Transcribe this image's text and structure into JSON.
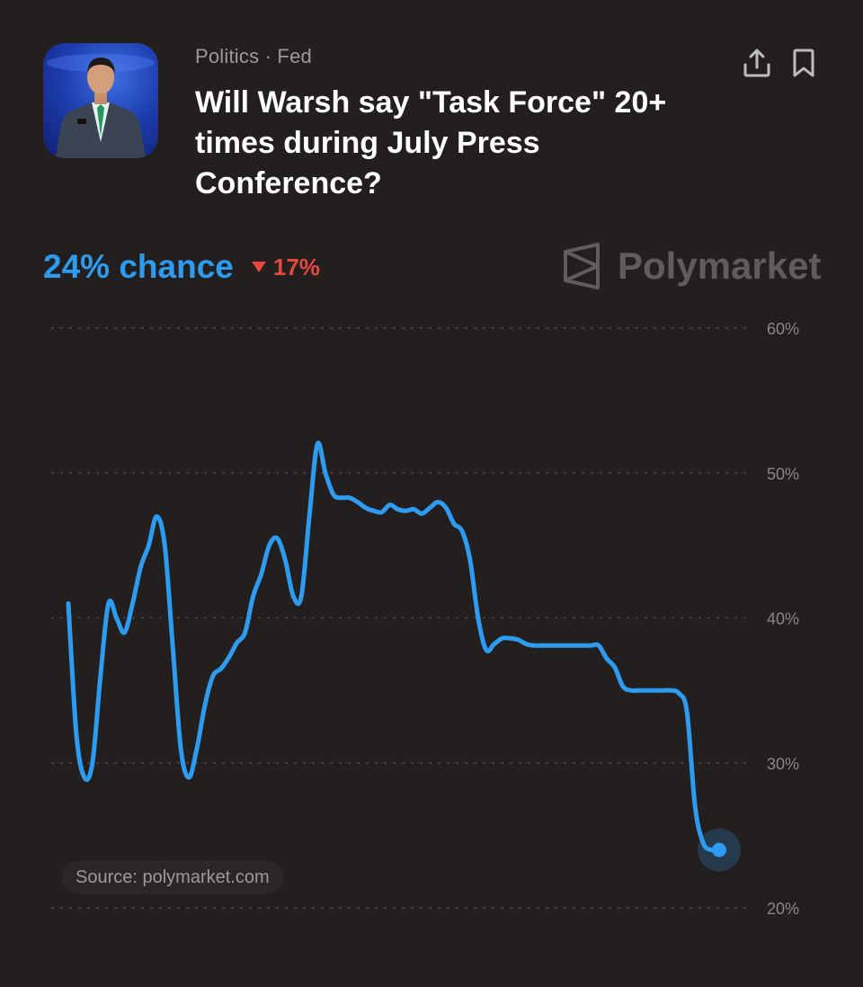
{
  "header": {
    "category": "Politics · Fed",
    "title": "Will Warsh say \"Task Force\" 20+ times during July Press Conference?"
  },
  "summary": {
    "chance_text": "24% chance",
    "change_text": "17%",
    "change_direction": "down"
  },
  "brand": {
    "name": "Polymarket"
  },
  "source": {
    "text": "Source: polymarket.com"
  },
  "colors": {
    "background": "#231f1e",
    "accent": "#2d9cf0",
    "negative": "#e5483f"
  },
  "icons": {
    "share": "share-icon",
    "bookmark": "bookmark-icon",
    "logo": "polymarket-logo-icon"
  },
  "chart_data": {
    "type": "line",
    "y_axis_position": "right",
    "ylim": [
      20,
      60
    ],
    "yticks": [
      20,
      30,
      40,
      50,
      60
    ],
    "ytick_labels": [
      "20%",
      "30%",
      "40%",
      "50%",
      "60%"
    ],
    "grid": true,
    "series": [
      {
        "values": [
          41,
          32,
          29,
          30,
          36,
          41,
          40,
          39,
          41,
          43.5,
          45,
          47,
          45,
          38,
          31,
          29,
          31,
          34,
          36,
          36.5,
          37.3,
          38.3,
          39,
          41.5,
          43,
          45,
          45.5,
          44,
          41.5,
          41.5,
          47,
          52,
          50,
          48.5,
          48.3,
          48.3,
          48,
          47.6,
          47.4,
          47.3,
          47.8,
          47.5,
          47.4,
          47.5,
          47.2,
          47.6,
          48,
          47.6,
          46.5,
          46,
          44,
          40,
          37.8,
          38.2,
          38.6,
          38.6,
          38.5,
          38.2,
          38.1,
          38.1,
          38.1,
          38.1,
          38.1,
          38.1,
          38.1,
          38.1,
          38.1,
          37.2,
          36.6,
          35.3,
          35,
          35,
          35,
          35,
          35,
          35,
          34.8,
          33.5,
          27,
          24.5,
          24,
          24
        ]
      }
    ]
  }
}
